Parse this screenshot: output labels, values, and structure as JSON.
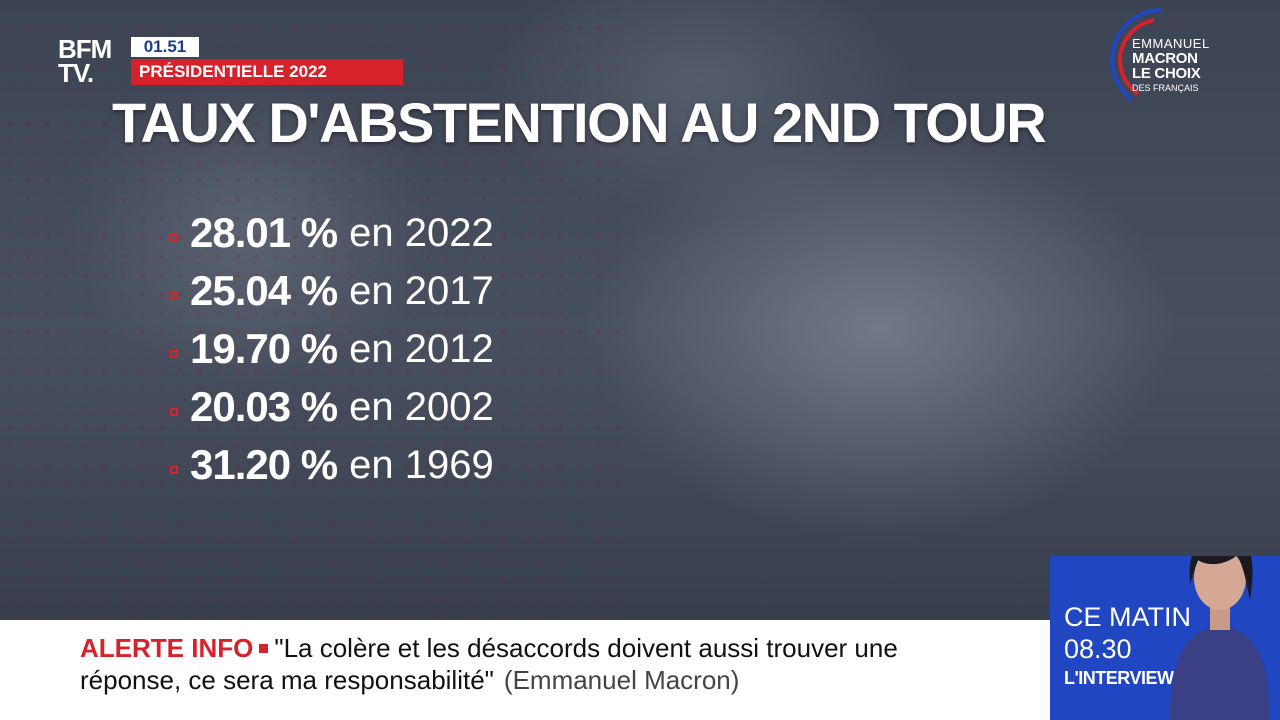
{
  "channel": {
    "logo_line1": "BFM",
    "logo_line2": "TV.",
    "clock": "01.51",
    "program_tag": "PRÉSIDENTIELLE 2022"
  },
  "emblem": {
    "line1": "EMMANUEL",
    "line2": "MACRON",
    "line3": "LE CHOIX",
    "line4": "DES FRANÇAIS"
  },
  "headline": "TAUX D'ABSTENTION AU 2ND TOUR",
  "stats": [
    {
      "pct": "28.01 %",
      "year": "en 2022"
    },
    {
      "pct": "25.04 %",
      "year": "en 2017"
    },
    {
      "pct": "19.70 %",
      "year": "en 2012"
    },
    {
      "pct": "20.03 %",
      "year": "en 2002"
    },
    {
      "pct": "31.20 %",
      "year": "en 1969"
    }
  ],
  "ticker": {
    "label": "ALERTE INFO",
    "quote_line1": "\"La colère et les désaccords doivent aussi trouver une",
    "quote_line2": "réponse, ce sera ma responsabilité\"",
    "author": "(Emmanuel Macron)"
  },
  "program_box": {
    "line1": "CE MATIN",
    "line2": "08.30",
    "line3": "L'INTERVIEW"
  },
  "colors": {
    "accent_red": "#d7222b",
    "program_blue": "#2146c2"
  }
}
